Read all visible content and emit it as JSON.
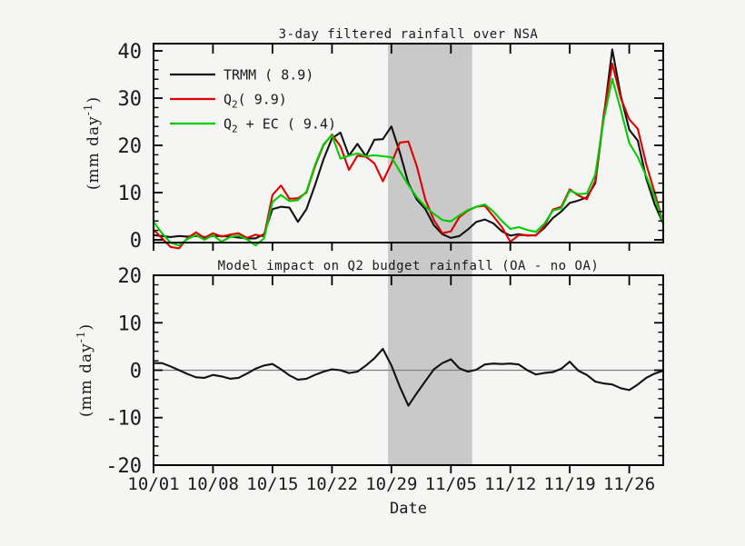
{
  "figure": {
    "background": "#f5f5f4",
    "frame_color": "#000000",
    "shaded_band_color": "#c9c9c9"
  },
  "chart_data": [
    {
      "id": "rainfall",
      "type": "line",
      "title": "3-day filtered rainfall over NSA",
      "ylabel": {
        "prefix": "(mm day",
        "sup": "-1",
        "suffix": ")"
      },
      "ylim": [
        -0.6,
        41.5
      ],
      "yticks_major": [
        0,
        10,
        20,
        30,
        40
      ],
      "ytick_minor_step": 2,
      "x_start_date": "10/01",
      "x_end_date": "11/30",
      "x_days_total": 61,
      "xticks": [
        {
          "day": 1,
          "label": "10/01"
        },
        {
          "day": 8,
          "label": "10/08"
        },
        {
          "day": 15,
          "label": "10/15"
        },
        {
          "day": 22,
          "label": "10/22"
        },
        {
          "day": 29,
          "label": "10/29"
        },
        {
          "day": 36,
          "label": "11/05"
        },
        {
          "day": 43,
          "label": "11/12"
        },
        {
          "day": 50,
          "label": "11/19"
        },
        {
          "day": 57,
          "label": "11/26"
        }
      ],
      "shaded_region": {
        "from_day": 28.6,
        "to_day": 38.5,
        "color": "#c9c9c9"
      },
      "legend_position": "upper-left",
      "series": [
        {
          "key": "trmm",
          "legend": {
            "prefix": "TRMM ( 8.9)"
          },
          "color": "#111111",
          "values": [
            1.0,
            0.8,
            0.6,
            0.8,
            0.7,
            0.8,
            0.6,
            0.8,
            0.8,
            0.7,
            0.5,
            0.3,
            0.3,
            1.2,
            6.5,
            7.0,
            6.8,
            3.8,
            6.5,
            11.5,
            17.0,
            21.5,
            22.7,
            17.8,
            20.3,
            17.7,
            21.2,
            21.3,
            24.0,
            18.5,
            12.0,
            8.5,
            6.5,
            3.1,
            1.2,
            0.4,
            0.8,
            2.2,
            3.8,
            4.3,
            3.5,
            1.8,
            0.9,
            1.2,
            0.9,
            1.0,
            2.5,
            4.6,
            6.0,
            7.8,
            8.3,
            9.0,
            12.0,
            26.0,
            40.3,
            30.5,
            23.3,
            21.0,
            13.0,
            7.5,
            3.4
          ]
        },
        {
          "key": "q2",
          "legend": {
            "prefix": "Q",
            "sub": "2",
            "suffix": "( 9.9)"
          },
          "color": "#dd0000",
          "values": [
            2.2,
            0.3,
            -1.5,
            -1.8,
            0.4,
            1.6,
            0.4,
            1.4,
            0.7,
            1.1,
            1.4,
            0.4,
            1.1,
            0.7,
            9.5,
            11.5,
            8.7,
            8.8,
            10.0,
            15.5,
            20.0,
            22.3,
            19.8,
            14.8,
            17.8,
            17.6,
            16.2,
            12.4,
            16.2,
            20.6,
            20.8,
            15.5,
            8.5,
            4.2,
            1.4,
            1.8,
            4.8,
            6.2,
            7.0,
            7.2,
            5.0,
            2.7,
            -0.4,
            1.0,
            1.0,
            0.9,
            2.9,
            6.4,
            7.0,
            10.7,
            9.4,
            8.6,
            12.5,
            26.5,
            37.3,
            30.0,
            25.5,
            23.5,
            16.0,
            10.0,
            3.5
          ]
        },
        {
          "key": "q2-ec",
          "legend": {
            "prefix": "Q",
            "sub": "2",
            "suffix": " + EC ( 9.4)"
          },
          "color": "#00cc00",
          "values": [
            3.8,
            1.4,
            -0.6,
            -1.2,
            0.2,
            1.0,
            0.0,
            1.0,
            -0.4,
            0.6,
            0.9,
            0.1,
            -1.2,
            0.3,
            8.0,
            9.5,
            8.2,
            8.4,
            10.2,
            15.8,
            20.2,
            22.2,
            17.2,
            17.8,
            18.3,
            17.7,
            17.9,
            17.7,
            17.5,
            14.5,
            11.6,
            9.0,
            7.0,
            5.5,
            4.2,
            3.9,
            5.2,
            6.3,
            7.0,
            7.5,
            6.0,
            4.0,
            2.3,
            2.7,
            2.1,
            1.7,
            3.4,
            6.2,
            6.7,
            10.4,
            9.7,
            9.8,
            13.8,
            25.5,
            34.1,
            27.5,
            20.5,
            17.5,
            13.5,
            9.0,
            3.4
          ]
        }
      ]
    },
    {
      "id": "impact",
      "type": "line",
      "title": "Model impact on Q2 budget rainfall (OA - no OA)",
      "ylabel": {
        "prefix": "(mm day",
        "sup": "-1",
        "suffix": ")"
      },
      "xlabel": "Date",
      "ylim": [
        -20,
        20
      ],
      "yticks_major": [
        -20,
        -10,
        0,
        10,
        20
      ],
      "ytick_minor_step": 2,
      "zero_line": true,
      "series": [
        {
          "key": "impact",
          "legend": {
            "prefix": "OA - no OA"
          },
          "color": "#111111",
          "values": [
            1.5,
            1.5,
            0.8,
            0.0,
            -0.8,
            -1.5,
            -1.6,
            -1.0,
            -1.3,
            -1.8,
            -1.6,
            -0.7,
            0.3,
            1.0,
            1.3,
            0.2,
            -1.1,
            -2.0,
            -1.8,
            -1.0,
            -0.3,
            0.2,
            0.0,
            -0.6,
            -0.3,
            1.0,
            2.5,
            4.5,
            1.0,
            -3.5,
            -7.5,
            -4.8,
            -2.3,
            0.2,
            1.5,
            2.3,
            0.4,
            -0.3,
            0.1,
            1.2,
            1.4,
            1.3,
            1.4,
            1.2,
            0.0,
            -0.9,
            -0.6,
            -0.4,
            0.3,
            1.8,
            -0.1,
            -1.0,
            -2.4,
            -2.8,
            -3.0,
            -3.8,
            -4.2,
            -3.0,
            -1.6,
            -0.7,
            -0.1
          ]
        }
      ]
    }
  ]
}
